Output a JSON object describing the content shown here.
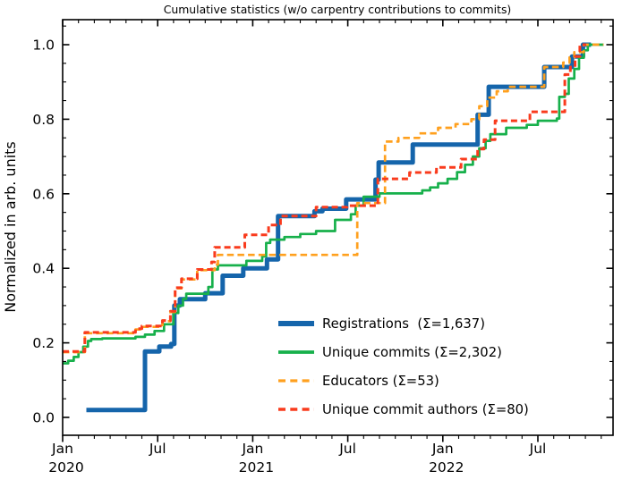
{
  "title": "Cumulative statistics (w/o carpentry contributions to commits)",
  "ylabel": "Normalized in arb. units",
  "colors": {
    "registrations": "#1565ab",
    "unique_commits": "#17b04b",
    "educators": "#ffa01e",
    "unique_commit_authors": "#f93b1d",
    "axis": "#000000",
    "background": "#ffffff"
  },
  "chart_data": {
    "type": "line",
    "title": "Cumulative statistics (w/o carpentry contributions to commits)",
    "xlabel": "",
    "ylabel": "Normalized in arb. units",
    "grid": false,
    "legend_position": "lower-right-inside",
    "x_unit": "months since Jan 2020",
    "xlim": [
      0,
      34.75
    ],
    "ylim": [
      -0.048,
      1.066
    ],
    "y_major_ticks": [
      {
        "v": 0.0,
        "label": "0.0"
      },
      {
        "v": 0.2,
        "label": "0.2"
      },
      {
        "v": 0.4,
        "label": "0.4"
      },
      {
        "v": 0.6,
        "label": "0.6"
      },
      {
        "v": 0.8,
        "label": "0.8"
      },
      {
        "v": 1.0,
        "label": "1.0"
      }
    ],
    "y_minor_step": 0.05,
    "x_major_ticks": [
      {
        "m": 0,
        "month": "Jan",
        "year": "2020"
      },
      {
        "m": 6,
        "month": "Jul",
        "year": ""
      },
      {
        "m": 12,
        "month": "Jan",
        "year": "2021"
      },
      {
        "m": 18,
        "month": "Jul",
        "year": ""
      },
      {
        "m": 24,
        "month": "Jan",
        "year": "2022"
      },
      {
        "m": 30,
        "month": "Jul",
        "year": ""
      }
    ],
    "x_minor_step_months": 1,
    "series": [
      {
        "key": "registrations",
        "name": "Registrations  (Σ=1,637)",
        "total": "1,637",
        "color": "#1565ab",
        "style": "solid",
        "line_width": 5,
        "step": "post",
        "points": [
          [
            1.5,
            0.02
          ],
          [
            5.2,
            0.177
          ],
          [
            6.1,
            0.19
          ],
          [
            6.85,
            0.197
          ],
          [
            7.05,
            0.3
          ],
          [
            7.4,
            0.317
          ],
          [
            9.0,
            0.333
          ],
          [
            10.1,
            0.38
          ],
          [
            11.4,
            0.4
          ],
          [
            12.9,
            0.424
          ],
          [
            13.6,
            0.54
          ],
          [
            15.9,
            0.553
          ],
          [
            16.4,
            0.56
          ],
          [
            17.9,
            0.585
          ],
          [
            19.75,
            0.638
          ],
          [
            19.95,
            0.684
          ],
          [
            22.1,
            0.732
          ],
          [
            26.2,
            0.812
          ],
          [
            26.9,
            0.887
          ],
          [
            30.4,
            0.94
          ],
          [
            32.15,
            0.968
          ],
          [
            32.85,
            1.0
          ],
          [
            33.35,
            1.0
          ]
        ]
      },
      {
        "key": "unique-commits",
        "name": "Unique commits (Σ=2,302)",
        "total": "2,302",
        "color": "#17b04b",
        "style": "solid",
        "line_width": 2.7,
        "step": "post",
        "points": [
          [
            0,
            0.145
          ],
          [
            0.35,
            0.152
          ],
          [
            0.7,
            0.162
          ],
          [
            1.0,
            0.175
          ],
          [
            1.3,
            0.19
          ],
          [
            1.6,
            0.205
          ],
          [
            1.8,
            0.21
          ],
          [
            2.5,
            0.212
          ],
          [
            4.6,
            0.216
          ],
          [
            5.2,
            0.222
          ],
          [
            5.8,
            0.232
          ],
          [
            6.4,
            0.25
          ],
          [
            7.0,
            0.28
          ],
          [
            7.3,
            0.3
          ],
          [
            7.6,
            0.318
          ],
          [
            7.8,
            0.332
          ],
          [
            9.2,
            0.35
          ],
          [
            9.45,
            0.397
          ],
          [
            9.8,
            0.408
          ],
          [
            11.6,
            0.42
          ],
          [
            12.6,
            0.432
          ],
          [
            12.85,
            0.468
          ],
          [
            13.1,
            0.477
          ],
          [
            14.0,
            0.484
          ],
          [
            15.0,
            0.492
          ],
          [
            16.0,
            0.5
          ],
          [
            17.2,
            0.53
          ],
          [
            18.2,
            0.545
          ],
          [
            18.5,
            0.568
          ],
          [
            19.0,
            0.592
          ],
          [
            20.0,
            0.601
          ],
          [
            22.7,
            0.609
          ],
          [
            23.2,
            0.617
          ],
          [
            23.7,
            0.628
          ],
          [
            24.3,
            0.64
          ],
          [
            24.9,
            0.658
          ],
          [
            25.4,
            0.678
          ],
          [
            25.9,
            0.7
          ],
          [
            26.3,
            0.722
          ],
          [
            26.7,
            0.742
          ],
          [
            27.0,
            0.76
          ],
          [
            28.0,
            0.777
          ],
          [
            29.3,
            0.785
          ],
          [
            30.0,
            0.796
          ],
          [
            31.2,
            0.802
          ],
          [
            31.35,
            0.86
          ],
          [
            31.7,
            0.868
          ],
          [
            31.95,
            0.909
          ],
          [
            32.3,
            0.935
          ],
          [
            32.6,
            0.965
          ],
          [
            32.9,
            0.985
          ],
          [
            33.15,
            1.0
          ],
          [
            34.15,
            1.0
          ]
        ]
      },
      {
        "key": "educators",
        "name": "Educators (Σ=53)",
        "total": "53",
        "color": "#ffa01e",
        "style": "dashed",
        "dash": "7.5 4.2",
        "line_width": 2.7,
        "step": "post",
        "points": [
          [
            0,
            0.175
          ],
          [
            1.4,
            0.226
          ],
          [
            4.6,
            0.236
          ],
          [
            5.0,
            0.243
          ],
          [
            6.3,
            0.258
          ],
          [
            6.8,
            0.283
          ],
          [
            7.1,
            0.346
          ],
          [
            7.5,
            0.37
          ],
          [
            8.5,
            0.395
          ],
          [
            9.6,
            0.41
          ],
          [
            9.8,
            0.436
          ],
          [
            18.6,
            0.575
          ],
          [
            20.35,
            0.74
          ],
          [
            21.2,
            0.75
          ],
          [
            22.5,
            0.762
          ],
          [
            23.7,
            0.777
          ],
          [
            24.8,
            0.787
          ],
          [
            25.8,
            0.8
          ],
          [
            26.3,
            0.835
          ],
          [
            26.8,
            0.858
          ],
          [
            27.4,
            0.875
          ],
          [
            28.1,
            0.887
          ],
          [
            30.4,
            0.94
          ],
          [
            31.6,
            0.952
          ],
          [
            32.0,
            0.966
          ],
          [
            32.3,
            0.98
          ],
          [
            32.9,
            1.0
          ],
          [
            34.15,
            1.0
          ]
        ]
      },
      {
        "key": "unique-commit-authors",
        "name": "Unique commit authors (Σ=80)",
        "total": "80",
        "color": "#f93b1d",
        "style": "dashed",
        "dash": "7 4",
        "line_width": 3,
        "step": "post",
        "points": [
          [
            0,
            0.177
          ],
          [
            1.4,
            0.228
          ],
          [
            4.6,
            0.238
          ],
          [
            5.0,
            0.245
          ],
          [
            6.3,
            0.26
          ],
          [
            6.8,
            0.285
          ],
          [
            7.1,
            0.348
          ],
          [
            7.5,
            0.372
          ],
          [
            8.5,
            0.397
          ],
          [
            9.4,
            0.417
          ],
          [
            9.6,
            0.456
          ],
          [
            11.5,
            0.49
          ],
          [
            13.0,
            0.516
          ],
          [
            13.75,
            0.54
          ],
          [
            16.0,
            0.564
          ],
          [
            17.95,
            0.568
          ],
          [
            19.9,
            0.64
          ],
          [
            21.9,
            0.657
          ],
          [
            23.6,
            0.671
          ],
          [
            25.15,
            0.693
          ],
          [
            26.2,
            0.72
          ],
          [
            26.6,
            0.745
          ],
          [
            27.3,
            0.796
          ],
          [
            29.5,
            0.82
          ],
          [
            31.7,
            0.92
          ],
          [
            32.05,
            0.94
          ],
          [
            32.35,
            0.968
          ],
          [
            32.65,
            1.0
          ],
          [
            33.05,
            1.0
          ]
        ]
      }
    ]
  }
}
